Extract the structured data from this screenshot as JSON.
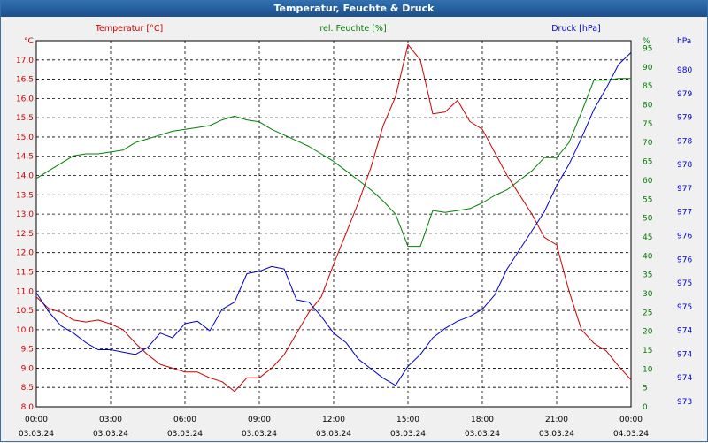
{
  "window_title": "Temperatur, Feuchte & Druck",
  "headers": {
    "temperature": "Temperatur [°C]",
    "humidity": "rel. Feuchte [%]",
    "pressure": "Druck [hPa]",
    "temp_unit": "°C",
    "hum_unit": "%",
    "press_unit": "hPa"
  },
  "colors": {
    "temperature": "#cc0000",
    "humidity": "#008000",
    "pressure": "#0000cc",
    "axis_text": "#000000"
  },
  "chart_data": {
    "type": "line",
    "grid": true,
    "x_ticks": [
      {
        "time": "00:00",
        "date": "03.03.24"
      },
      {
        "time": "03:00",
        "date": "03.03.24"
      },
      {
        "time": "06:00",
        "date": "03.03.24"
      },
      {
        "time": "09:00",
        "date": "03.03.24"
      },
      {
        "time": "12:00",
        "date": "03.03.24"
      },
      {
        "time": "15:00",
        "date": "03.03.24"
      },
      {
        "time": "18:00",
        "date": "03.03.24"
      },
      {
        "time": "21:00",
        "date": "03.03.24"
      },
      {
        "time": "00:00",
        "date": "04.03.24"
      }
    ],
    "xlim": [
      "03.03.24 00:00",
      "04.03.24 00:00"
    ],
    "axes": {
      "temperature": {
        "ylim": [
          8.0,
          17.5
        ],
        "ticks": [
          "8.0",
          "8.5",
          "9.0",
          "9.5",
          "10.0",
          "10.5",
          "11.0",
          "11.5",
          "12.0",
          "12.5",
          "13.0",
          "13.5",
          "14.0",
          "14.5",
          "15.0",
          "15.5",
          "16.0",
          "16.5",
          "17.0"
        ]
      },
      "humidity": {
        "ylim": [
          0,
          97
        ],
        "ticks": [
          "0",
          "5",
          "10",
          "15",
          "20",
          "25",
          "30",
          "35",
          "40",
          "45",
          "50",
          "55",
          "60",
          "65",
          "70",
          "75",
          "80",
          "85",
          "90",
          "95"
        ]
      },
      "pressure": {
        "ticks": [
          "973",
          "974",
          "974",
          "974",
          "975",
          "975",
          "976",
          "976",
          "977",
          "977",
          "978",
          "978",
          "979",
          "979",
          "980"
        ]
      }
    },
    "series": [
      {
        "name": "Temperatur [°C]",
        "axis": "temperature",
        "x": [
          "00:00",
          "00:30",
          "01:00",
          "01:30",
          "02:00",
          "02:30",
          "03:00",
          "03:30",
          "04:00",
          "04:30",
          "05:00",
          "05:30",
          "06:00",
          "06:30",
          "07:00",
          "07:30",
          "08:00",
          "08:30",
          "09:00",
          "09:30",
          "10:00",
          "10:30",
          "11:00",
          "11:30",
          "12:00",
          "12:30",
          "13:00",
          "13:30",
          "14:00",
          "14:30",
          "15:00",
          "15:30",
          "16:00",
          "16:30",
          "17:00",
          "17:30",
          "18:00",
          "18:30",
          "19:00",
          "19:30",
          "20:00",
          "20:30",
          "21:00",
          "21:30",
          "22:00",
          "22:30",
          "23:00",
          "23:30",
          "24:00"
        ],
        "values": [
          10.85,
          10.55,
          10.45,
          10.25,
          10.2,
          10.25,
          10.15,
          10.0,
          9.65,
          9.35,
          9.1,
          9.0,
          8.9,
          8.9,
          8.75,
          8.65,
          8.4,
          8.75,
          8.75,
          9.0,
          9.35,
          9.9,
          10.45,
          10.85,
          11.7,
          12.5,
          13.3,
          14.2,
          15.3,
          16.05,
          17.4,
          17.0,
          15.6,
          15.65,
          15.95,
          15.4,
          15.2,
          14.6,
          14.0,
          13.5,
          13.0,
          12.4,
          12.2,
          11.0,
          10.0,
          9.65,
          9.45,
          9.05,
          8.7
        ]
      },
      {
        "name": "rel. Feuchte [%]",
        "axis": "humidity",
        "x": [
          "00:00",
          "00:30",
          "01:00",
          "01:30",
          "02:00",
          "02:30",
          "03:00",
          "03:30",
          "04:00",
          "04:30",
          "05:00",
          "05:30",
          "06:00",
          "06:30",
          "07:00",
          "07:30",
          "08:00",
          "08:30",
          "09:00",
          "09:30",
          "10:00",
          "10:30",
          "11:00",
          "11:30",
          "12:00",
          "12:30",
          "13:00",
          "13:30",
          "14:00",
          "14:30",
          "15:00",
          "15:30",
          "16:00",
          "16:30",
          "17:00",
          "17:30",
          "18:00",
          "18:30",
          "19:00",
          "19:30",
          "20:00",
          "20:30",
          "21:00",
          "21:30",
          "22:00",
          "22:30",
          "23:00",
          "23:30",
          "24:00"
        ],
        "values": [
          60.5,
          62.5,
          64.5,
          66.5,
          67.0,
          67.0,
          67.5,
          68.0,
          70.0,
          71.0,
          72.0,
          73.0,
          73.5,
          74.0,
          74.5,
          76.0,
          77.0,
          76.0,
          75.5,
          73.5,
          72.0,
          70.5,
          69.0,
          67.0,
          65.0,
          62.5,
          60.0,
          57.5,
          54.5,
          51.0,
          42.5,
          42.5,
          52.0,
          51.5,
          52.0,
          52.5,
          54.0,
          56.0,
          57.5,
          60.0,
          62.5,
          66.0,
          66.0,
          70.0,
          78.0,
          86.5,
          86.5,
          87.0,
          87.0
        ]
      },
      {
        "name": "Druck [hPa]",
        "axis": "pressure",
        "x": [
          "00:00",
          "00:30",
          "01:00",
          "01:30",
          "02:00",
          "02:30",
          "03:00",
          "03:30",
          "04:00",
          "04:30",
          "05:00",
          "05:30",
          "06:00",
          "06:30",
          "07:00",
          "07:30",
          "08:00",
          "08:30",
          "09:00",
          "09:30",
          "10:00",
          "10:30",
          "11:00",
          "11:30",
          "12:00",
          "12:30",
          "13:00",
          "13:30",
          "14:00",
          "14:30",
          "15:00",
          "15:30",
          "16:00",
          "16:30",
          "17:00",
          "17:30",
          "18:00",
          "18:30",
          "19:00",
          "19:30",
          "20:00",
          "20:30",
          "21:00",
          "21:30",
          "22:00",
          "22:30",
          "23:00",
          "23:30",
          "24:00"
        ],
        "values": [
          975.2,
          974.8,
          974.5,
          974.35,
          974.15,
          974.0,
          974.0,
          973.95,
          973.9,
          974.05,
          974.35,
          974.25,
          974.55,
          974.6,
          974.4,
          974.85,
          975.0,
          975.6,
          975.65,
          975.75,
          975.7,
          975.05,
          975.0,
          974.7,
          974.35,
          974.15,
          973.8,
          973.6,
          973.4,
          973.25,
          973.65,
          973.9,
          974.25,
          974.45,
          974.6,
          974.7,
          974.85,
          975.15,
          975.7,
          976.1,
          976.5,
          976.9,
          977.45,
          977.9,
          978.45,
          979.05,
          979.5,
          980.0,
          980.25
        ]
      }
    ]
  }
}
